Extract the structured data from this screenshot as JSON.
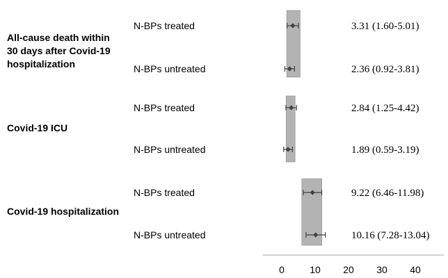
{
  "chart_data": {
    "type": "forest",
    "groups": [
      {
        "label_lines": [
          "All-cause death within",
          "30 days after Covid-19",
          "hospitalization"
        ],
        "rows": [
          {
            "label": "N-BPs treated",
            "estimate": 3.31,
            "lower": 1.6,
            "upper": 5.01,
            "text": "3.31 (1.60-5.01)"
          },
          {
            "label": "N-BPs untreated",
            "estimate": 2.36,
            "lower": 0.92,
            "upper": 3.81,
            "text": "2.36 (0.92-3.81)"
          }
        ],
        "band": [
          1.5,
          5.5
        ]
      },
      {
        "label_lines": [
          "Covid-19 ICU"
        ],
        "rows": [
          {
            "label": "N-BPs treated",
            "estimate": 2.84,
            "lower": 1.25,
            "upper": 4.42,
            "text": "2.84 (1.25-4.42)"
          },
          {
            "label": "N-BPs untreated",
            "estimate": 1.89,
            "lower": 0.59,
            "upper": 3.19,
            "text": "1.89 (0.59-3.19)"
          }
        ],
        "band": [
          1.3,
          4.0
        ]
      },
      {
        "label_lines": [
          "Covid-19 hospitalization"
        ],
        "rows": [
          {
            "label": "N-BPs treated",
            "estimate": 9.22,
            "lower": 6.46,
            "upper": 11.98,
            "text": "9.22 (6.46-11.98)"
          },
          {
            "label": "N-BPs untreated",
            "estimate": 10.16,
            "lower": 7.28,
            "upper": 13.04,
            "text": "10.16 (7.28-13.04)"
          }
        ],
        "band": [
          6.0,
          12.0
        ]
      }
    ],
    "x_ticks": [
      0,
      10,
      20,
      30,
      40
    ],
    "xlim": [
      0,
      40
    ],
    "colors": {
      "band": "#b3b3b3",
      "band_edge": "#8a8a8a",
      "marker": "#404040",
      "axis": "#a6a6a6"
    }
  }
}
